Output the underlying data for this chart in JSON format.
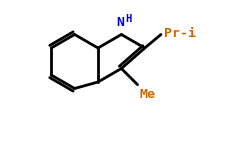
{
  "bg_color": "#ffffff",
  "line_color": "#000000",
  "bond_width": 2.0,
  "n_color": "#0000cc",
  "label_n": "N",
  "label_h": "H",
  "label_pri": "Pr-i",
  "label_me": "Me",
  "pri_color": "#cc6600",
  "me_color": "#cc6600",
  "figsize": [
    2.37,
    1.49
  ],
  "dpi": 100
}
